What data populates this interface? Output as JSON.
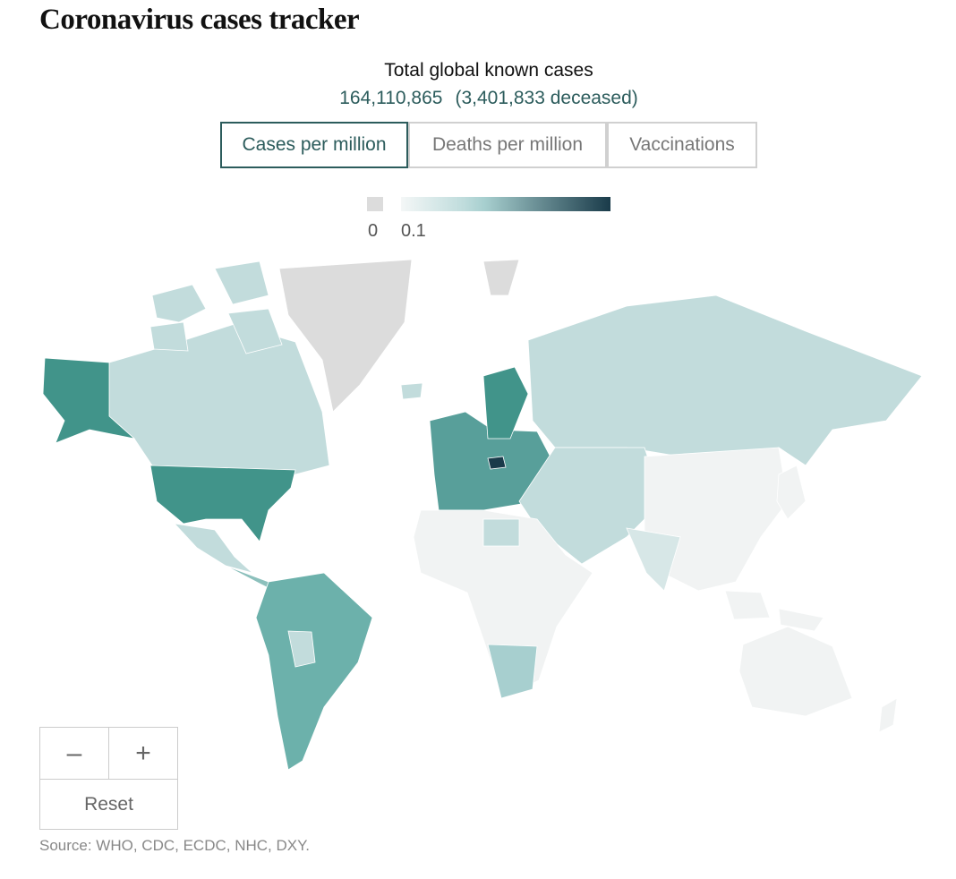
{
  "header": {
    "title": "Coronavirus cases tracker"
  },
  "summary": {
    "label": "Total global known cases",
    "total": "164,110,865",
    "deceased": "(3,401,833 deceased)"
  },
  "tabs": [
    "Cases per million",
    "Deaths per million",
    "Vaccinations"
  ],
  "legend": {
    "labels": [
      "0",
      "0.1"
    ]
  },
  "controls": {
    "zoom_out": "–",
    "zoom_in": "+",
    "reset": "Reset"
  },
  "footer": {
    "source": "Source: WHO, CDC, ECDC, NHC, DXY."
  }
}
